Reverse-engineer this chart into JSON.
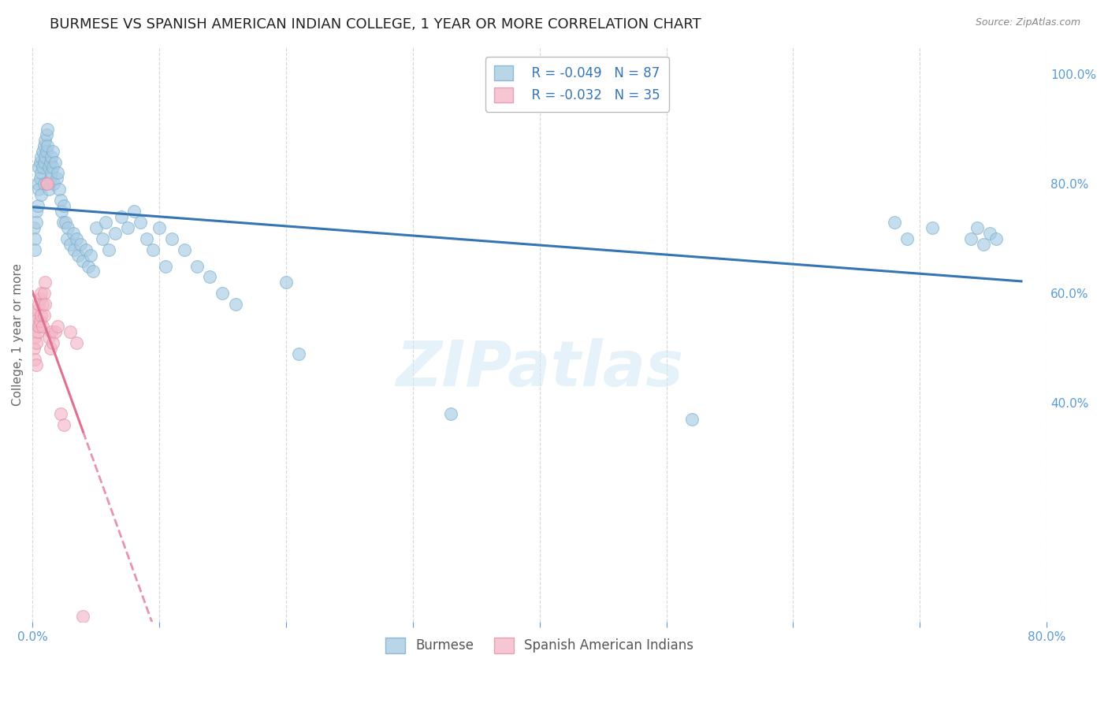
{
  "title": "BURMESE VS SPANISH AMERICAN INDIAN COLLEGE, 1 YEAR OR MORE CORRELATION CHART",
  "source": "Source: ZipAtlas.com",
  "ylabel": "College, 1 year or more",
  "right_ytick_labels": [
    "100.0%",
    "80.0%",
    "60.0%",
    "40.0%"
  ],
  "right_ytick_values": [
    1.0,
    0.8,
    0.6,
    0.4
  ],
  "xlim": [
    0.0,
    0.8
  ],
  "ylim": [
    0.0,
    1.05
  ],
  "title_fontsize": 13,
  "label_fontsize": 11,
  "tick_fontsize": 11,
  "blue_color": "#a8cce4",
  "blue_edge_color": "#7aafc8",
  "blue_line_color": "#3575b5",
  "pink_color": "#f4b8c8",
  "pink_edge_color": "#e090a8",
  "pink_line_color": "#e07090",
  "legend_label_blue": "Burmese",
  "legend_label_pink": "Spanish American Indians",
  "legend_R_blue": "R = -0.049",
  "legend_N_blue": "N = 87",
  "legend_R_pink": "R = -0.032",
  "legend_N_pink": "N = 35",
  "blue_x": [
    0.001,
    0.002,
    0.002,
    0.003,
    0.003,
    0.004,
    0.004,
    0.005,
    0.005,
    0.006,
    0.006,
    0.007,
    0.007,
    0.007,
    0.008,
    0.008,
    0.009,
    0.009,
    0.009,
    0.01,
    0.01,
    0.011,
    0.011,
    0.012,
    0.012,
    0.013,
    0.013,
    0.014,
    0.014,
    0.015,
    0.015,
    0.016,
    0.016,
    0.017,
    0.018,
    0.019,
    0.02,
    0.021,
    0.022,
    0.023,
    0.024,
    0.025,
    0.026,
    0.027,
    0.028,
    0.03,
    0.032,
    0.033,
    0.035,
    0.036,
    0.038,
    0.04,
    0.042,
    0.044,
    0.046,
    0.048,
    0.05,
    0.055,
    0.058,
    0.06,
    0.065,
    0.07,
    0.075,
    0.08,
    0.085,
    0.09,
    0.095,
    0.1,
    0.105,
    0.11,
    0.12,
    0.13,
    0.14,
    0.15,
    0.16,
    0.2,
    0.21,
    0.33,
    0.52,
    0.68,
    0.69,
    0.71,
    0.74,
    0.745,
    0.75,
    0.755,
    0.76
  ],
  "blue_y": [
    0.72,
    0.7,
    0.68,
    0.75,
    0.73,
    0.8,
    0.76,
    0.83,
    0.79,
    0.84,
    0.81,
    0.85,
    0.82,
    0.78,
    0.86,
    0.83,
    0.87,
    0.84,
    0.8,
    0.88,
    0.85,
    0.89,
    0.86,
    0.9,
    0.87,
    0.83,
    0.79,
    0.84,
    0.81,
    0.85,
    0.82,
    0.86,
    0.83,
    0.8,
    0.84,
    0.81,
    0.82,
    0.79,
    0.77,
    0.75,
    0.73,
    0.76,
    0.73,
    0.7,
    0.72,
    0.69,
    0.71,
    0.68,
    0.7,
    0.67,
    0.69,
    0.66,
    0.68,
    0.65,
    0.67,
    0.64,
    0.72,
    0.7,
    0.73,
    0.68,
    0.71,
    0.74,
    0.72,
    0.75,
    0.73,
    0.7,
    0.68,
    0.72,
    0.65,
    0.7,
    0.68,
    0.65,
    0.63,
    0.6,
    0.58,
    0.62,
    0.49,
    0.38,
    0.37,
    0.73,
    0.7,
    0.72,
    0.7,
    0.72,
    0.69,
    0.71,
    0.7
  ],
  "pink_x": [
    0.001,
    0.001,
    0.002,
    0.002,
    0.002,
    0.003,
    0.003,
    0.003,
    0.004,
    0.004,
    0.005,
    0.005,
    0.006,
    0.006,
    0.007,
    0.007,
    0.008,
    0.008,
    0.009,
    0.009,
    0.01,
    0.01,
    0.011,
    0.012,
    0.013,
    0.014,
    0.015,
    0.016,
    0.018,
    0.02,
    0.022,
    0.025,
    0.03,
    0.035,
    0.04
  ],
  "pink_y": [
    0.54,
    0.5,
    0.56,
    0.52,
    0.48,
    0.55,
    0.51,
    0.47,
    0.57,
    0.53,
    0.58,
    0.54,
    0.59,
    0.55,
    0.6,
    0.56,
    0.58,
    0.54,
    0.6,
    0.56,
    0.62,
    0.58,
    0.8,
    0.8,
    0.52,
    0.5,
    0.53,
    0.51,
    0.53,
    0.54,
    0.38,
    0.36,
    0.53,
    0.51,
    0.01
  ],
  "watermark": "ZIPatlas",
  "background_color": "#ffffff",
  "grid_color": "#cccccc",
  "axis_color": "#5b9bd5"
}
